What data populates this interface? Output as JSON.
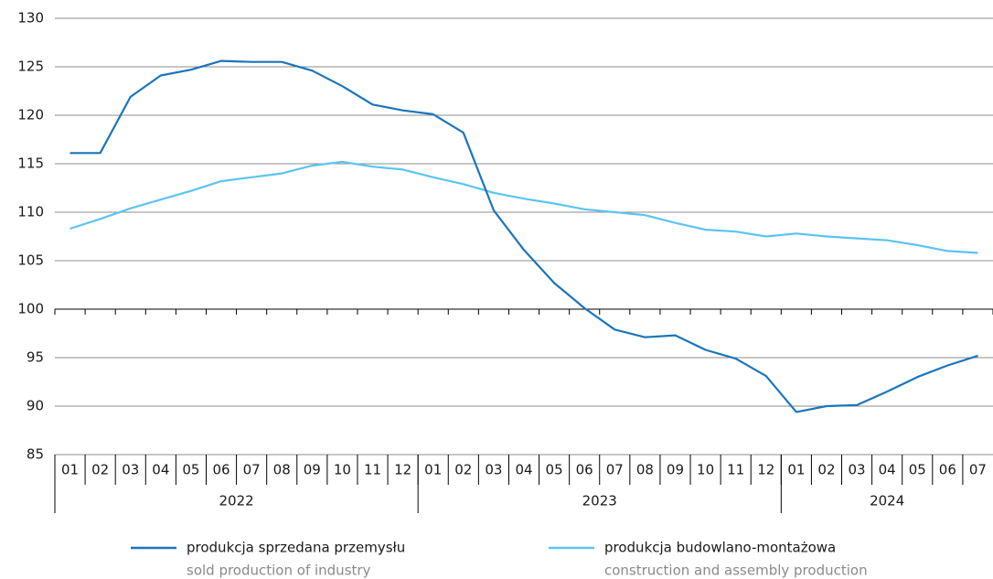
{
  "chart_data": {
    "type": "line",
    "categories": [
      "01",
      "02",
      "03",
      "04",
      "05",
      "06",
      "07",
      "08",
      "09",
      "10",
      "11",
      "12",
      "01",
      "02",
      "03",
      "04",
      "05",
      "06",
      "07",
      "08",
      "09",
      "10",
      "11",
      "12",
      "01",
      "02",
      "03",
      "04",
      "05",
      "06",
      "07"
    ],
    "groups": [
      "2022",
      "2023",
      "2024"
    ],
    "series": [
      {
        "name": "produkcja sprzedana przemysłu",
        "subname": "sold production of industry",
        "color": "#1b75bb",
        "values": [
          116.1,
          116.1,
          121.9,
          124.1,
          124.7,
          125.6,
          125.5,
          125.5,
          124.6,
          123.0,
          121.1,
          120.5,
          120.1,
          118.2,
          110.2,
          106.1,
          102.7,
          100.1,
          97.9,
          97.1,
          97.3,
          95.8,
          94.9,
          93.1,
          89.4,
          90.0,
          90.1,
          91.5,
          93.0,
          94.2,
          95.2
        ]
      },
      {
        "name": "produkcja budowlano-montażowa",
        "subname": "construction and assembly production",
        "color": "#5bc4f1",
        "values": [
          108.3,
          109.3,
          110.4,
          111.3,
          112.2,
          113.2,
          113.6,
          114.0,
          114.8,
          115.2,
          114.7,
          114.4,
          113.6,
          112.9,
          112.0,
          111.4,
          110.9,
          110.3,
          110.0,
          109.7,
          108.9,
          108.2,
          108.0,
          107.5,
          107.8,
          107.5,
          107.3,
          107.1,
          106.6,
          106.0,
          105.8
        ]
      }
    ],
    "ylim": [
      85,
      130
    ],
    "yticks": [
      85,
      90,
      95,
      100,
      105,
      110,
      115,
      120,
      125,
      130
    ],
    "base": 100,
    "grid": true,
    "legend": "bottom"
  }
}
